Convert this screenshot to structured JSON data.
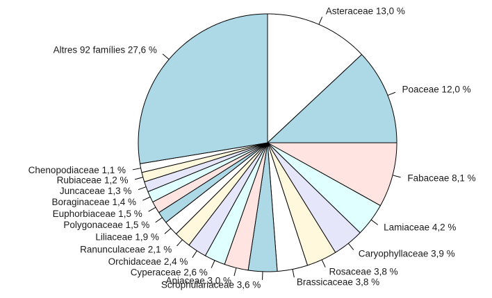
{
  "chart_data": {
    "type": "pie",
    "title": "",
    "palette": [
      "#ffffff",
      "#add8e6",
      "#ffe4e1",
      "#e0ffff",
      "#e6e6fa",
      "#fff8dc"
    ],
    "slices": [
      {
        "name": "Asteraceae",
        "value": 13.0,
        "label": "Asteraceae 13,0 %"
      },
      {
        "name": "Poaceae",
        "value": 12.0,
        "label": "Poaceae 12,0 %"
      },
      {
        "name": "Fabaceae",
        "value": 8.1,
        "label": "Fabaceae  8,1 %"
      },
      {
        "name": "Lamiaceae",
        "value": 4.2,
        "label": "Lamiaceae  4,2 %"
      },
      {
        "name": "Caryophyllaceae",
        "value": 3.9,
        "label": "Caryophyllaceae  3,9 %"
      },
      {
        "name": "Rosaceae",
        "value": 3.8,
        "label": "Rosaceae  3,8 %"
      },
      {
        "name": "Brassicaceae",
        "value": 3.8,
        "label": "Brassicaceae  3,8 %"
      },
      {
        "name": "Scrophulariaceae",
        "value": 3.6,
        "label": "Scrophulariaceae  3,6 %"
      },
      {
        "name": "Apiaceae",
        "value": 3.0,
        "label": "Apiaceae  3,0 %"
      },
      {
        "name": "Cyperaceae",
        "value": 2.6,
        "label": "Cyperaceae  2,6 %"
      },
      {
        "name": "Orchidaceae",
        "value": 2.4,
        "label": "Orchidaceae  2,4 %"
      },
      {
        "name": "Ranunculaceae",
        "value": 2.1,
        "label": "Ranunculaceae  2,1 %"
      },
      {
        "name": "Liliaceae",
        "value": 1.9,
        "label": "Liliaceae  1,9 %"
      },
      {
        "name": "Polygonaceae",
        "value": 1.5,
        "label": "Polygonaceae  1,5 %"
      },
      {
        "name": "Euphorbiaceae",
        "value": 1.5,
        "label": "Euphorbiaceae  1,5 %"
      },
      {
        "name": "Boraginaceae",
        "value": 1.4,
        "label": "Boraginaceae  1,4 %"
      },
      {
        "name": "Juncaceae",
        "value": 1.3,
        "label": "Juncaceae  1,3 %"
      },
      {
        "name": "Rubiaceae",
        "value": 1.2,
        "label": "Rubiaceae  1,2 %"
      },
      {
        "name": "Chenopodiaceae",
        "value": 1.1,
        "label": "Chenopodiaceae  1,1 %"
      },
      {
        "name": "Altres 92 famílies",
        "value": 27.6,
        "label": "Altres 92 famílies 27,6 %"
      }
    ]
  }
}
